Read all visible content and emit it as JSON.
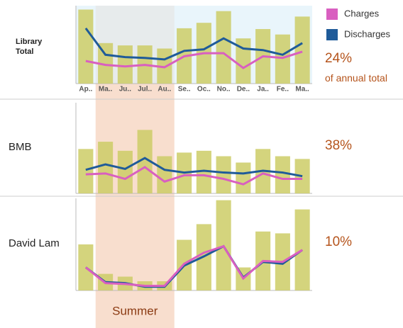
{
  "annotation": "Summer",
  "chart_data": [
    {
      "type": "bar-line",
      "row_label": "Library Total",
      "share": "24%",
      "share_note": "of annual total",
      "categories": [
        "Ap..",
        "Ma..",
        "Ju..",
        "Jul..",
        "Au..",
        "Se..",
        "Oc..",
        "No..",
        "De..",
        "Ja..",
        "Fe..",
        "Ma.."
      ],
      "values": [
        95,
        52,
        49,
        49,
        45,
        71,
        78,
        93,
        58,
        70,
        63,
        86
      ],
      "color": "#cccc66",
      "ylim": [
        0,
        100
      ],
      "legend": "upper right",
      "series": [
        {
          "name": "Charges",
          "color": "#d95fc0",
          "values": [
            29,
            24,
            22,
            24,
            21,
            35,
            39,
            39,
            20,
            35,
            33,
            41
          ]
        },
        {
          "name": "Discharges",
          "color": "#1f5b99",
          "values": [
            71,
            37,
            34,
            33,
            31,
            42,
            44,
            58,
            45,
            43,
            37,
            52
          ]
        }
      ]
    },
    {
      "type": "bar-line",
      "row_label": "BMB",
      "share": "38%",
      "values": [
        49,
        57,
        47,
        70,
        41,
        45,
        47,
        41,
        34,
        49,
        41,
        38
      ],
      "color": "#cccc66",
      "ylim": [
        0,
        100
      ],
      "series": [
        {
          "color": "#d95fc0",
          "values": [
            21,
            22,
            16,
            29,
            13,
            20,
            20,
            16,
            10,
            22,
            16,
            16
          ]
        },
        {
          "color": "#1f5b99",
          "values": [
            26,
            32,
            27,
            39,
            26,
            23,
            25,
            23,
            22,
            25,
            23,
            19
          ]
        }
      ]
    },
    {
      "type": "bar-line",
      "row_label": "David Lam",
      "share": "10%",
      "values": [
        50,
        18,
        15,
        10,
        10,
        55,
        72,
        98,
        25,
        64,
        62,
        88
      ],
      "color": "#cccc66",
      "ylim": [
        0,
        100
      ],
      "series": [
        {
          "color": "#d95fc0",
          "values": [
            25,
            8,
            7,
            5,
            5,
            29,
            41,
            48,
            13,
            32,
            31,
            44
          ]
        },
        {
          "color": "#1f5b99",
          "values": [
            25,
            9,
            8,
            4,
            4,
            27,
            37,
            48,
            14,
            31,
            29,
            44
          ]
        }
      ]
    }
  ]
}
